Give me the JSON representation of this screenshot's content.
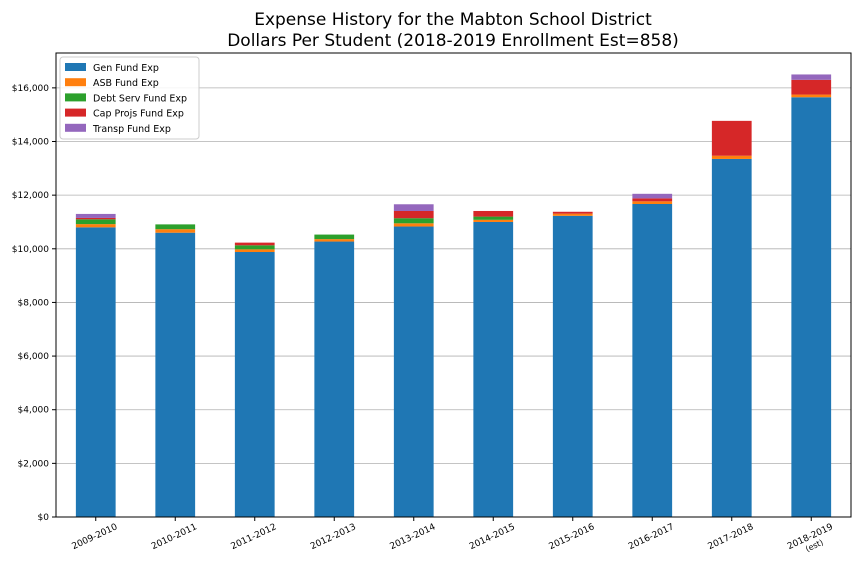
{
  "chart_data": {
    "type": "bar",
    "stacked": true,
    "title_lines": [
      "Expense History for the Mabton School District",
      "Dollars Per Student (2018-2019 Enrollment Est=858)"
    ],
    "xlabel": "",
    "ylabel": "",
    "ylim": [
      0,
      17300
    ],
    "yticks": [
      0,
      2000,
      4000,
      6000,
      8000,
      10000,
      12000,
      14000,
      16000
    ],
    "ytick_labels": [
      "$0",
      "$2,000",
      "$4,000",
      "$6,000",
      "$8,000",
      "$10,000",
      "$12,000",
      "$14,000",
      "$16,000"
    ],
    "grid": "y",
    "legend_position": "top-left",
    "categories": [
      [
        "2009-2010"
      ],
      [
        "2010-2011"
      ],
      [
        "2011-2012"
      ],
      [
        "2012-2013"
      ],
      [
        "2013-2014"
      ],
      [
        "2014-2015"
      ],
      [
        "2015-2016"
      ],
      [
        "2016-2017"
      ],
      [
        "2017-2018"
      ],
      [
        "2018-2019",
        "(est)"
      ]
    ],
    "series": [
      {
        "name": "Gen Fund Exp",
        "color": "#1f77b4",
        "values": [
          10800,
          10600,
          9880,
          10270,
          10830,
          11000,
          11230,
          11670,
          13350,
          15650
        ]
      },
      {
        "name": "ASB Fund Exp",
        "color": "#ff7f0e",
        "values": [
          120,
          130,
          100,
          90,
          120,
          80,
          80,
          100,
          120,
          100
        ]
      },
      {
        "name": "Debt Serv Fund Exp",
        "color": "#2ca02c",
        "values": [
          180,
          180,
          150,
          170,
          190,
          120,
          0,
          0,
          0,
          0
        ]
      },
      {
        "name": "Cap Projs Fund Exp",
        "color": "#d62728",
        "values": [
          50,
          0,
          100,
          0,
          270,
          210,
          70,
          110,
          1300,
          550
        ]
      },
      {
        "name": "Transp Fund Exp",
        "color": "#9467bd",
        "values": [
          150,
          0,
          0,
          0,
          250,
          0,
          0,
          170,
          0,
          200
        ]
      }
    ]
  }
}
